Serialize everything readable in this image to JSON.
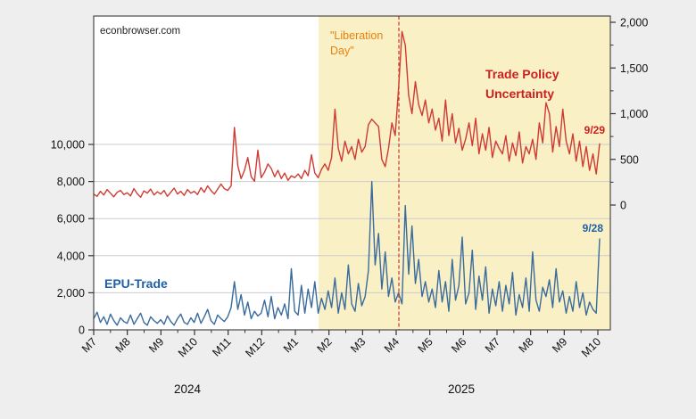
{
  "watermark": "econbrowser.com",
  "annotations": {
    "liberation_day_line1": "\"Liberation",
    "liberation_day_line2": "Day\"",
    "tpu_line1": "Trade Policy",
    "tpu_line2": "Uncertainty",
    "tpu_last_date": "9/29",
    "epu_label": "EPU-Trade",
    "epu_last_date": "9/28"
  },
  "colors": {
    "background": "#eeeeee",
    "plot_background": "#ffffff",
    "shaded_region": "#faf0c5",
    "gridline": "#cccccc",
    "frame": "#4a4a4a",
    "red_line": "#cf3b33",
    "blue_line": "#3a6b9d",
    "orange_text": "#e8820e",
    "dashed_line": "#cc4438"
  },
  "chart_data": {
    "type": "line",
    "title": "",
    "x_tick_labels": [
      "M7",
      "M8",
      "M9",
      "M10",
      "M11",
      "M12",
      "M1",
      "M2",
      "M3",
      "M4",
      "M5",
      "M6",
      "M7",
      "M8",
      "M9",
      "M10"
    ],
    "year_labels": [
      "2024",
      "2025"
    ],
    "left_axis": {
      "tick_labels": [
        "0",
        "2,000",
        "4,000",
        "6,000",
        "8,000",
        "10,000"
      ],
      "tick_values": [
        0,
        2000,
        4000,
        6000,
        8000,
        10000
      ],
      "ylim": [
        0,
        16900
      ]
    },
    "right_axis": {
      "tick_labels": [
        "0",
        "500",
        "1,000",
        "1,500",
        "2,000"
      ],
      "tick_values": [
        0,
        500,
        1000,
        1500,
        2000
      ],
      "minor_tick_values": [
        250,
        750,
        1250,
        1750
      ],
      "ylim": [
        0,
        2070
      ]
    },
    "shaded_region": {
      "start_month_index": 6.69,
      "end_month_index": 15.37
    },
    "dashed_line_month_index": 9.08,
    "grid": "horizontal-left-axis-major",
    "legend_position": "in-plot-text-annotations",
    "series": [
      {
        "name": "Trade Policy Uncertainty",
        "axis": "right",
        "color": "#cf3b33",
        "values": [
          120,
          95,
          150,
          110,
          170,
          130,
          90,
          140,
          160,
          115,
          135,
          100,
          180,
          125,
          85,
          155,
          130,
          175,
          110,
          145,
          120,
          160,
          95,
          140,
          185,
          120,
          150,
          105,
          170,
          130,
          150,
          115,
          190,
          140,
          210,
          160,
          120,
          175,
          230,
          180,
          160,
          210,
          850,
          430,
          290,
          380,
          520,
          310,
          260,
          600,
          300,
          360,
          450,
          400,
          310,
          380,
          290,
          350,
          270,
          320,
          300,
          340,
          290,
          380,
          320,
          550,
          350,
          300,
          390,
          450,
          380,
          520,
          1050,
          620,
          480,
          700,
          560,
          640,
          500,
          720,
          580,
          640,
          880,
          940,
          900,
          860,
          500,
          420,
          620,
          900,
          760,
          1280,
          1900,
          1750,
          1200,
          1000,
          1350,
          1100,
          980,
          1150,
          900,
          1050,
          820,
          950,
          700,
          1150,
          760,
          1000,
          680,
          840,
          600,
          720,
          900,
          650,
          950,
          560,
          780,
          600,
          850,
          520,
          700,
          620,
          560,
          760,
          480,
          680,
          540,
          800,
          460,
          640,
          560,
          720,
          500,
          900,
          680,
          1120,
          1000,
          580,
          860,
          640,
          1050,
          700,
          560,
          780,
          480,
          700,
          420,
          640,
          380,
          560,
          340,
          670
        ]
      },
      {
        "name": "EPU-Trade",
        "axis": "left",
        "color": "#3a6b9d",
        "values": [
          600,
          950,
          400,
          700,
          300,
          850,
          500,
          250,
          650,
          450,
          350,
          800,
          300,
          600,
          900,
          400,
          250,
          700,
          500,
          350,
          550,
          300,
          750,
          450,
          250,
          600,
          850,
          400,
          300,
          650,
          400,
          900,
          350,
          700,
          1100,
          500,
          300,
          800,
          600,
          450,
          700,
          1200,
          2600,
          1100,
          1900,
          800,
          1500,
          600,
          1000,
          750,
          900,
          1600,
          700,
          1800,
          600,
          1200,
          800,
          1400,
          600,
          3300,
          1000,
          800,
          2400,
          900,
          2200,
          1200,
          2600,
          900,
          1700,
          1100,
          2100,
          1200,
          2800,
          900,
          2000,
          1100,
          3500,
          1400,
          1000,
          2500,
          1300,
          1800,
          3200,
          8000,
          3500,
          5200,
          2200,
          4200,
          1800,
          2800,
          1500,
          2000,
          1400,
          6700,
          3000,
          5600,
          2500,
          3800,
          1800,
          2600,
          1500,
          2200,
          1200,
          3200,
          1500,
          2600,
          1000,
          3800,
          1600,
          2400,
          5000,
          1400,
          2000,
          4300,
          1100,
          2900,
          1600,
          3400,
          900,
          2200,
          1300,
          2600,
          1000,
          2400,
          1400,
          3100,
          800,
          1900,
          1200,
          2800,
          1000,
          4200,
          1600,
          1000,
          2300,
          1800,
          2700,
          1200,
          3300,
          1500,
          2100,
          900,
          1800,
          1000,
          2600,
          1200,
          2000,
          800,
          1500,
          1100,
          900,
          4900
        ]
      }
    ]
  }
}
